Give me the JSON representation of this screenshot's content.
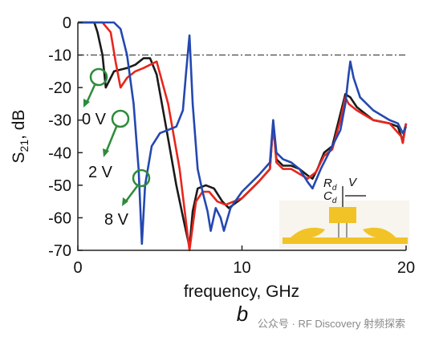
{
  "chart_data": {
    "type": "line",
    "xlabel": "frequency, GHz",
    "ylabel": {
      "main": "S",
      "sub": "21",
      "rest": ", dB"
    },
    "panel_label": "b",
    "xlim": [
      0,
      20
    ],
    "xticks": [
      0,
      10,
      20
    ],
    "ylim": [
      -70,
      0
    ],
    "yticks": [
      0,
      -10,
      -20,
      -30,
      -40,
      -50,
      -60,
      -70
    ],
    "reference_line": -10,
    "annotations": [
      "0 V",
      "2 V",
      "8 V"
    ],
    "inset_labels": {
      "r": "R",
      "r_sub": "d",
      "v": "V",
      "c": "C",
      "c_sub": "d"
    },
    "watermark": "公众号 · RF Discovery 射频探索",
    "series": [
      {
        "name": "0 V",
        "color": "#1a1a1a",
        "x": [
          0,
          1.0,
          1.2,
          1.5,
          1.7,
          1.9,
          2.2,
          3,
          3.5,
          4,
          4.4,
          4.8,
          5.3,
          6,
          6.5,
          6.8,
          7.0,
          7.3,
          7.8,
          8.3,
          8.8,
          9.2,
          10,
          11,
          11.7,
          11.9,
          12.1,
          12.5,
          13,
          13.5,
          14,
          14.3,
          14.6,
          15,
          15.5,
          16,
          16.3,
          16.6,
          17,
          18,
          19,
          19.5,
          19.7,
          19.8,
          19.9,
          20
        ],
        "values": [
          0,
          0,
          -3,
          -10,
          -20,
          -18,
          -15,
          -14,
          -13,
          -11,
          -11,
          -16,
          -30,
          -50,
          -62,
          -69,
          -58,
          -51,
          -50,
          -51,
          -55,
          -57,
          -54,
          -49,
          -45,
          -31,
          -42,
          -44,
          -44,
          -45,
          -47,
          -48,
          -45,
          -40,
          -38,
          -28,
          -22,
          -23,
          -26,
          -30,
          -31,
          -32,
          -35,
          -37,
          -33,
          -31
        ]
      },
      {
        "name": "2 V",
        "color": "#e8261c",
        "x": [
          0,
          1.5,
          2.0,
          2.3,
          2.6,
          3.0,
          3.5,
          4.0,
          4.8,
          5.5,
          6.2,
          6.8,
          7.2,
          7.6,
          8,
          8.5,
          9,
          10,
          11,
          11.7,
          11.9,
          12.1,
          12.5,
          13,
          14,
          14.5,
          15,
          15.5,
          16,
          16.3,
          16.5,
          17,
          18,
          19,
          19.7,
          19.8,
          20
        ],
        "values": [
          0,
          0,
          -3,
          -12,
          -20,
          -17,
          -15,
          -14,
          -12,
          -25,
          -45,
          -70,
          -55,
          -52,
          -52,
          -55,
          -56,
          -54,
          -49,
          -45,
          -31,
          -43,
          -45,
          -45,
          -48,
          -46,
          -41,
          -39,
          -30,
          -23,
          -25,
          -27,
          -30,
          -31,
          -35,
          -37,
          -31
        ]
      },
      {
        "name": "8 V",
        "color": "#2448b0",
        "x": [
          0,
          2.2,
          2.6,
          3.0,
          3.4,
          3.7,
          3.9,
          4.1,
          4.5,
          5,
          5.5,
          6,
          6.4,
          6.6,
          6.8,
          7.0,
          7.3,
          7.6,
          7.9,
          8.1,
          8.4,
          8.7,
          8.9,
          9.3,
          10,
          11,
          11.7,
          11.9,
          12.1,
          12.5,
          13,
          13.5,
          14,
          14.3,
          14.8,
          15.5,
          16,
          16.3,
          16.5,
          16.6,
          16.8,
          17.2,
          18,
          19,
          19.5,
          19.8,
          20
        ],
        "values": [
          0,
          0,
          -2,
          -10,
          -25,
          -45,
          -68,
          -50,
          -38,
          -34,
          -33,
          -32,
          -27,
          -15,
          -4,
          -25,
          -45,
          -52,
          -58,
          -64,
          -57,
          -60,
          -64,
          -57,
          -52,
          -47,
          -43,
          -30,
          -40,
          -42,
          -43,
          -45,
          -49,
          -51,
          -45,
          -38,
          -33,
          -25,
          -16,
          -12,
          -17,
          -23,
          -27,
          -30,
          -31,
          -34,
          -32
        ]
      }
    ]
  }
}
